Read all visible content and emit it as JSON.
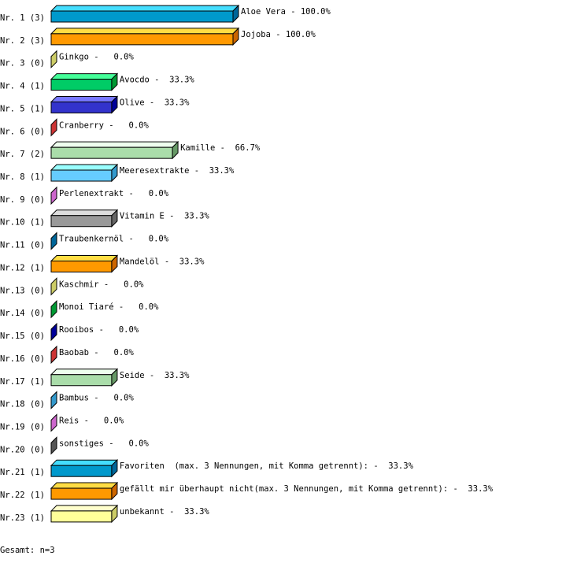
{
  "chart_data": {
    "type": "bar",
    "orientation": "horizontal",
    "style": "3d",
    "xlim": [
      0,
      100
    ],
    "unit": "%",
    "grid": false,
    "categories": [
      "Nr. 1",
      "Nr. 2",
      "Nr. 3",
      "Nr. 4",
      "Nr. 5",
      "Nr. 6",
      "Nr. 7",
      "Nr. 8",
      "Nr. 9",
      "Nr.10",
      "Nr.11",
      "Nr.12",
      "Nr.13",
      "Nr.14",
      "Nr.15",
      "Nr.16",
      "Nr.17",
      "Nr.18",
      "Nr.19",
      "Nr.20",
      "Nr.21",
      "Nr.22",
      "Nr.23"
    ],
    "counts": [
      3,
      3,
      0,
      1,
      1,
      0,
      2,
      1,
      0,
      1,
      0,
      1,
      0,
      0,
      0,
      0,
      1,
      0,
      0,
      0,
      1,
      1,
      1
    ],
    "names": [
      "Aloe Vera",
      "Jojoba",
      "Ginkgo",
      "Avocdo",
      "Olive",
      "Cranberry",
      "Kamille",
      "Meeresextrakte",
      "Perlenextrakt",
      "Vitamin E",
      "Traubenkernöl",
      "Mandelöl",
      "Kaschmir",
      "Monoi Tiaré",
      "Rooibos",
      "Baobab",
      "Seide",
      "Bambus",
      "Reis",
      "sonstiges",
      "Favoriten  (max. 3 Nennungen, mit Komma getrennt):",
      "gefällt mir überhaupt nicht(max. 3 Nennungen, mit Komma getrennt):",
      "unbekannt"
    ],
    "values": [
      100.0,
      100.0,
      0.0,
      33.3,
      33.3,
      0.0,
      66.7,
      33.3,
      0.0,
      33.3,
      0.0,
      33.3,
      0.0,
      0.0,
      0.0,
      0.0,
      33.3,
      0.0,
      0.0,
      0.0,
      33.3,
      33.3,
      33.3
    ],
    "colors": [
      [
        "#0099cc",
        "#44ddff",
        "#006699"
      ],
      [
        "#ff9900",
        "#ffdd44",
        "#cc6600"
      ],
      [
        "#cccc66",
        "#eeee99",
        "#cccc66"
      ],
      [
        "#00cc66",
        "#44ff99",
        "#009933"
      ],
      [
        "#3333cc",
        "#7777ff",
        "#000099"
      ],
      [
        "#cc3333",
        "#ff6666",
        "#cc3333"
      ],
      [
        "#aaddaa",
        "#eeffee",
        "#669966"
      ],
      [
        "#66ccff",
        "#99ffff",
        "#3399cc"
      ],
      [
        "#cc66cc",
        "#ff99ff",
        "#cc66cc"
      ],
      [
        "#999999",
        "#dddddd",
        "#666666"
      ],
      [
        "#006699",
        "#3399cc",
        "#006699"
      ],
      [
        "#ff9900",
        "#ffdd44",
        "#cc6600"
      ],
      [
        "#cccc66",
        "#eeee99",
        "#cccc66"
      ],
      [
        "#009933",
        "#44ff99",
        "#009933"
      ],
      [
        "#000099",
        "#3333cc",
        "#000099"
      ],
      [
        "#cc3333",
        "#ff6666",
        "#cc3333"
      ],
      [
        "#aaddaa",
        "#eeffee",
        "#669966"
      ],
      [
        "#3399cc",
        "#66ccff",
        "#3399cc"
      ],
      [
        "#cc66cc",
        "#ff99ff",
        "#cc66cc"
      ],
      [
        "#555555",
        "#999999",
        "#555555"
      ],
      [
        "#0099cc",
        "#44ddff",
        "#006699"
      ],
      [
        "#ff9900",
        "#ffdd44",
        "#cc6600"
      ],
      [
        "#ffff99",
        "#ffffcc",
        "#cccc66"
      ]
    ],
    "footer": "Gesamt: n=3"
  }
}
